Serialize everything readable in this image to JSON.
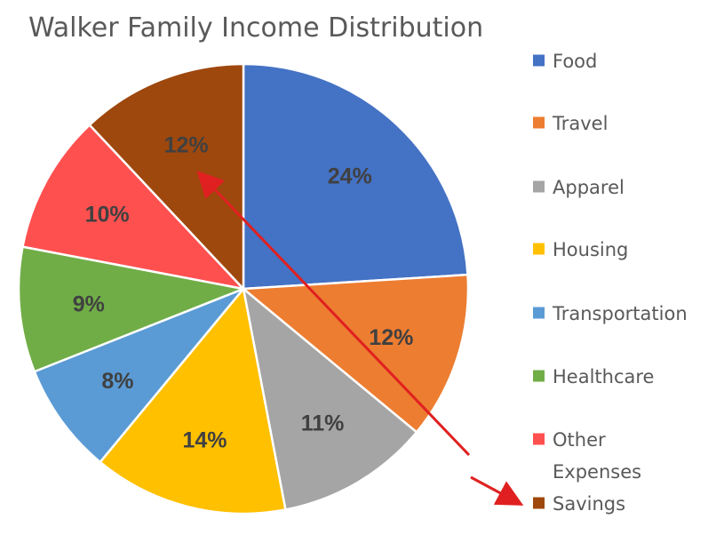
{
  "chart_data": {
    "type": "pie",
    "title": "Walker Family Income Distribution",
    "categories": [
      "Food",
      "Travel",
      "Apparel",
      "Housing",
      "Transportation",
      "Healthcare",
      "Other Expenses",
      "Savings"
    ],
    "values": [
      24,
      12,
      11,
      14,
      8,
      9,
      10,
      12
    ],
    "data_labels": [
      "24%",
      "12%",
      "11%",
      "14%",
      "8%",
      "9%",
      "10%",
      "12%"
    ],
    "colors": [
      "#4472C4",
      "#ED7D31",
      "#A5A5A5",
      "#FFC000",
      "#5B9BD5",
      "#70AD47",
      "#FF5050",
      "#9E480E"
    ],
    "legend": {
      "placement": "right",
      "entries": [
        {
          "label_lines": [
            "Food"
          ]
        },
        {
          "label_lines": [
            "Travel"
          ]
        },
        {
          "label_lines": [
            "Apparel"
          ]
        },
        {
          "label_lines": [
            "Housing"
          ]
        },
        {
          "label_lines": [
            "Transportation"
          ]
        },
        {
          "label_lines": [
            "Healthcare"
          ]
        },
        {
          "label_lines": [
            "Other",
            "Expenses"
          ]
        },
        {
          "label_lines": [
            "Savings"
          ]
        }
      ]
    },
    "annotations": [
      {
        "type": "arrow",
        "color": "#E02020",
        "from": "legend entry Savings",
        "to": "Savings slice label"
      }
    ]
  }
}
